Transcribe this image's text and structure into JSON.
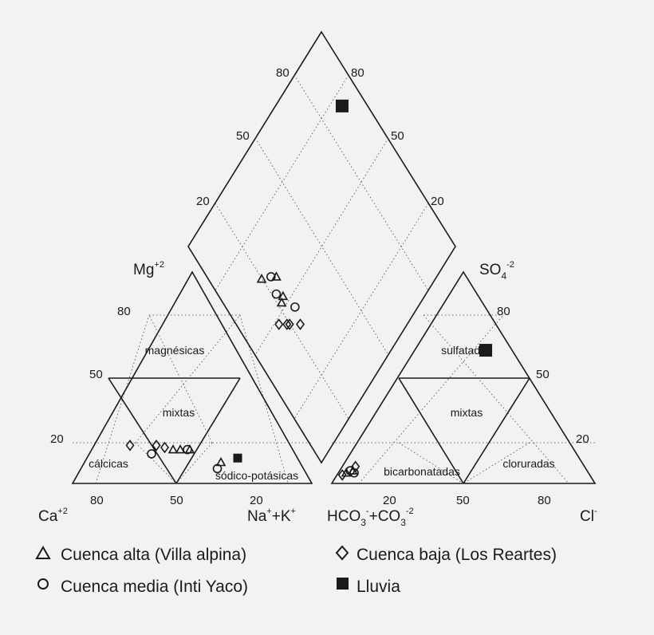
{
  "figure": {
    "type": "piper_diagram",
    "axes": {
      "mg": "Mg",
      "mg_charge": "+2",
      "ca": "Ca",
      "ca_charge": "+2",
      "na_k": "Na",
      "na_k_plus1": "+",
      "na_k_mid": "+K",
      "na_k_plus2": "+",
      "so4": "SO",
      "so4_sub": "4",
      "so4_charge": "-2",
      "hco3_co3": "HCO",
      "hco3_sub": "3",
      "hco3_charge": "-",
      "hco3_mid": "+CO",
      "co3_sub": "3",
      "co3_charge": "-2",
      "cl": "Cl",
      "cl_charge": "-"
    },
    "cation_triangle": {
      "ticks_left": [
        "80",
        "50",
        "20"
      ],
      "ticks_bottom": [
        "80",
        "50",
        "20"
      ],
      "zones": [
        "magnésicas",
        "mixtas",
        "cálcicas",
        "sódico-potásicas"
      ]
    },
    "anion_triangle": {
      "ticks_right": [
        "80",
        "50",
        "20"
      ],
      "ticks_bottom": [
        "20",
        "50",
        "80"
      ],
      "zones": [
        "sulfatadas",
        "mixtas",
        "bicarbonatadas",
        "cloruradas"
      ]
    },
    "diamond": {
      "ticks_upper_left": [
        "80",
        "50",
        "20"
      ],
      "ticks_upper_right": [
        "80",
        "50",
        "20"
      ]
    },
    "legend": [
      {
        "marker": "triangle",
        "label": "Cuenca alta (Villa alpina)"
      },
      {
        "marker": "diamond",
        "label": "Cuenca baja (Los Reartes)"
      },
      {
        "marker": "circle",
        "label": "Cuenca media (Inti Yaco)"
      },
      {
        "marker": "square",
        "label": "Lluvia"
      }
    ]
  },
  "chart_data": {
    "type": "scatter",
    "units": "% meq/L",
    "series": [
      {
        "name": "Cuenca alta (Villa alpina)",
        "marker": "triangle",
        "cations": [
          {
            "ca": 50,
            "mg": 16
          },
          {
            "ca": 47,
            "mg": 16
          },
          {
            "ca": 43,
            "mg": 16
          },
          {
            "ca": 33,
            "mg": 10
          }
        ],
        "anions": [
          {
            "cl": 3,
            "so4": 5
          },
          {
            "cl": 5,
            "so4": 6
          }
        ],
        "diamond": [
          {
            "cation_na_k": 52,
            "anion_cl_so4": 22
          },
          {
            "cation_na_k": 53,
            "anion_cl_so4": 24
          },
          {
            "cation_na_k": 60,
            "anion_cl_so4": 26
          },
          {
            "cation_na_k": 65,
            "anion_cl_so4": 20
          }
        ]
      },
      {
        "name": "Cuenca baja (Los Reartes)",
        "marker": "diamond",
        "cations": [
          {
            "ca": 67,
            "mg": 18
          },
          {
            "ca": 56,
            "mg": 18
          },
          {
            "ca": 53,
            "mg": 17
          }
        ],
        "anions": [
          {
            "cl": 2,
            "so4": 4
          },
          {
            "cl": 5,
            "so4": 8
          }
        ],
        "diamond": [
          {
            "cation_na_k": 40,
            "anion_cl_so4": 24
          },
          {
            "cation_na_k": 44,
            "anion_cl_so4": 20
          },
          {
            "cation_na_k": 45,
            "anion_cl_so4": 19
          },
          {
            "cation_na_k": 48,
            "anion_cl_so4": 16
          }
        ]
      },
      {
        "name": "Cuenca media (Inti Yaco)",
        "marker": "circle",
        "cations": [
          {
            "ca": 60,
            "mg": 14
          },
          {
            "ca": 44,
            "mg": 16
          },
          {
            "ca": 36,
            "mg": 7
          }
        ],
        "anions": [
          {
            "cl": 4,
            "so4": 6
          },
          {
            "cl": 6,
            "so4": 5
          }
        ],
        "diamond": [
          {
            "cation_na_k": 46,
            "anion_cl_so4": 26
          },
          {
            "cation_na_k": 56,
            "anion_cl_so4": 22
          },
          {
            "cation_na_k": 62,
            "anion_cl_so4": 24
          }
        ]
      },
      {
        "name": "Lluvia",
        "marker": "square",
        "cations": [
          {
            "ca": 25,
            "mg": 12
          }
        ],
        "anions": [
          {
            "cl": 27,
            "so4": 63
          }
        ],
        "diamond": [
          {
            "cation_na_k": 75,
            "anion_cl_so4": 90
          }
        ]
      }
    ]
  }
}
